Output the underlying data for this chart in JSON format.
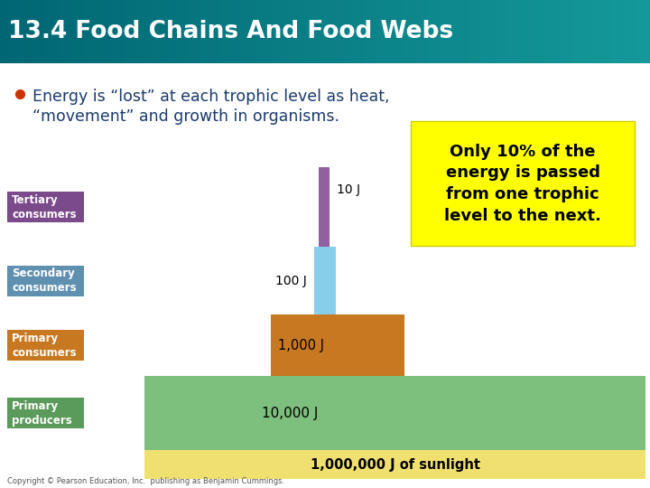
{
  "title": "13.4 Food Chains And Food Webs",
  "subtitle_line1": "Energy is “lost” at each trophic level as heat,",
  "subtitle_line2": "“movement” and growth in organisms.",
  "subtitle_color": "#1a3a6e",
  "bg_color": "#ffffff",
  "sunlight_color": "#f0e070",
  "sunlight_label": "1,000,000 J of sunlight",
  "producers_color": "#7dbf7d",
  "producers_label": "10,000 J",
  "producers_tag": "Primary\nproducers",
  "producers_tag_color": "#5a9a5a",
  "primary_color": "#c87820",
  "primary_label": "1,000 J",
  "primary_tag": "Primary\nconsumers",
  "primary_tag_color": "#c87820",
  "secondary_color": "#87ceeb",
  "secondary_label": "100 J",
  "secondary_tag": "Secondary\nconsumers",
  "secondary_tag_color": "#6090b0",
  "tertiary_color": "#9060a0",
  "tertiary_label": "10 J",
  "tertiary_tag": "Tertiary\nconsumers",
  "tertiary_tag_color": "#7a4a8a",
  "note_text": "Only 10% of the\nenergy is passed\nfrom one trophic\nlevel to the next.",
  "note_bg": "#ffff00",
  "note_color": "#000000",
  "copyright": "Copyright © Pearson Education, Inc.  publishing as Benjamin Cummings.",
  "header_color1": "#006878",
  "header_color2": "#10a0b0"
}
